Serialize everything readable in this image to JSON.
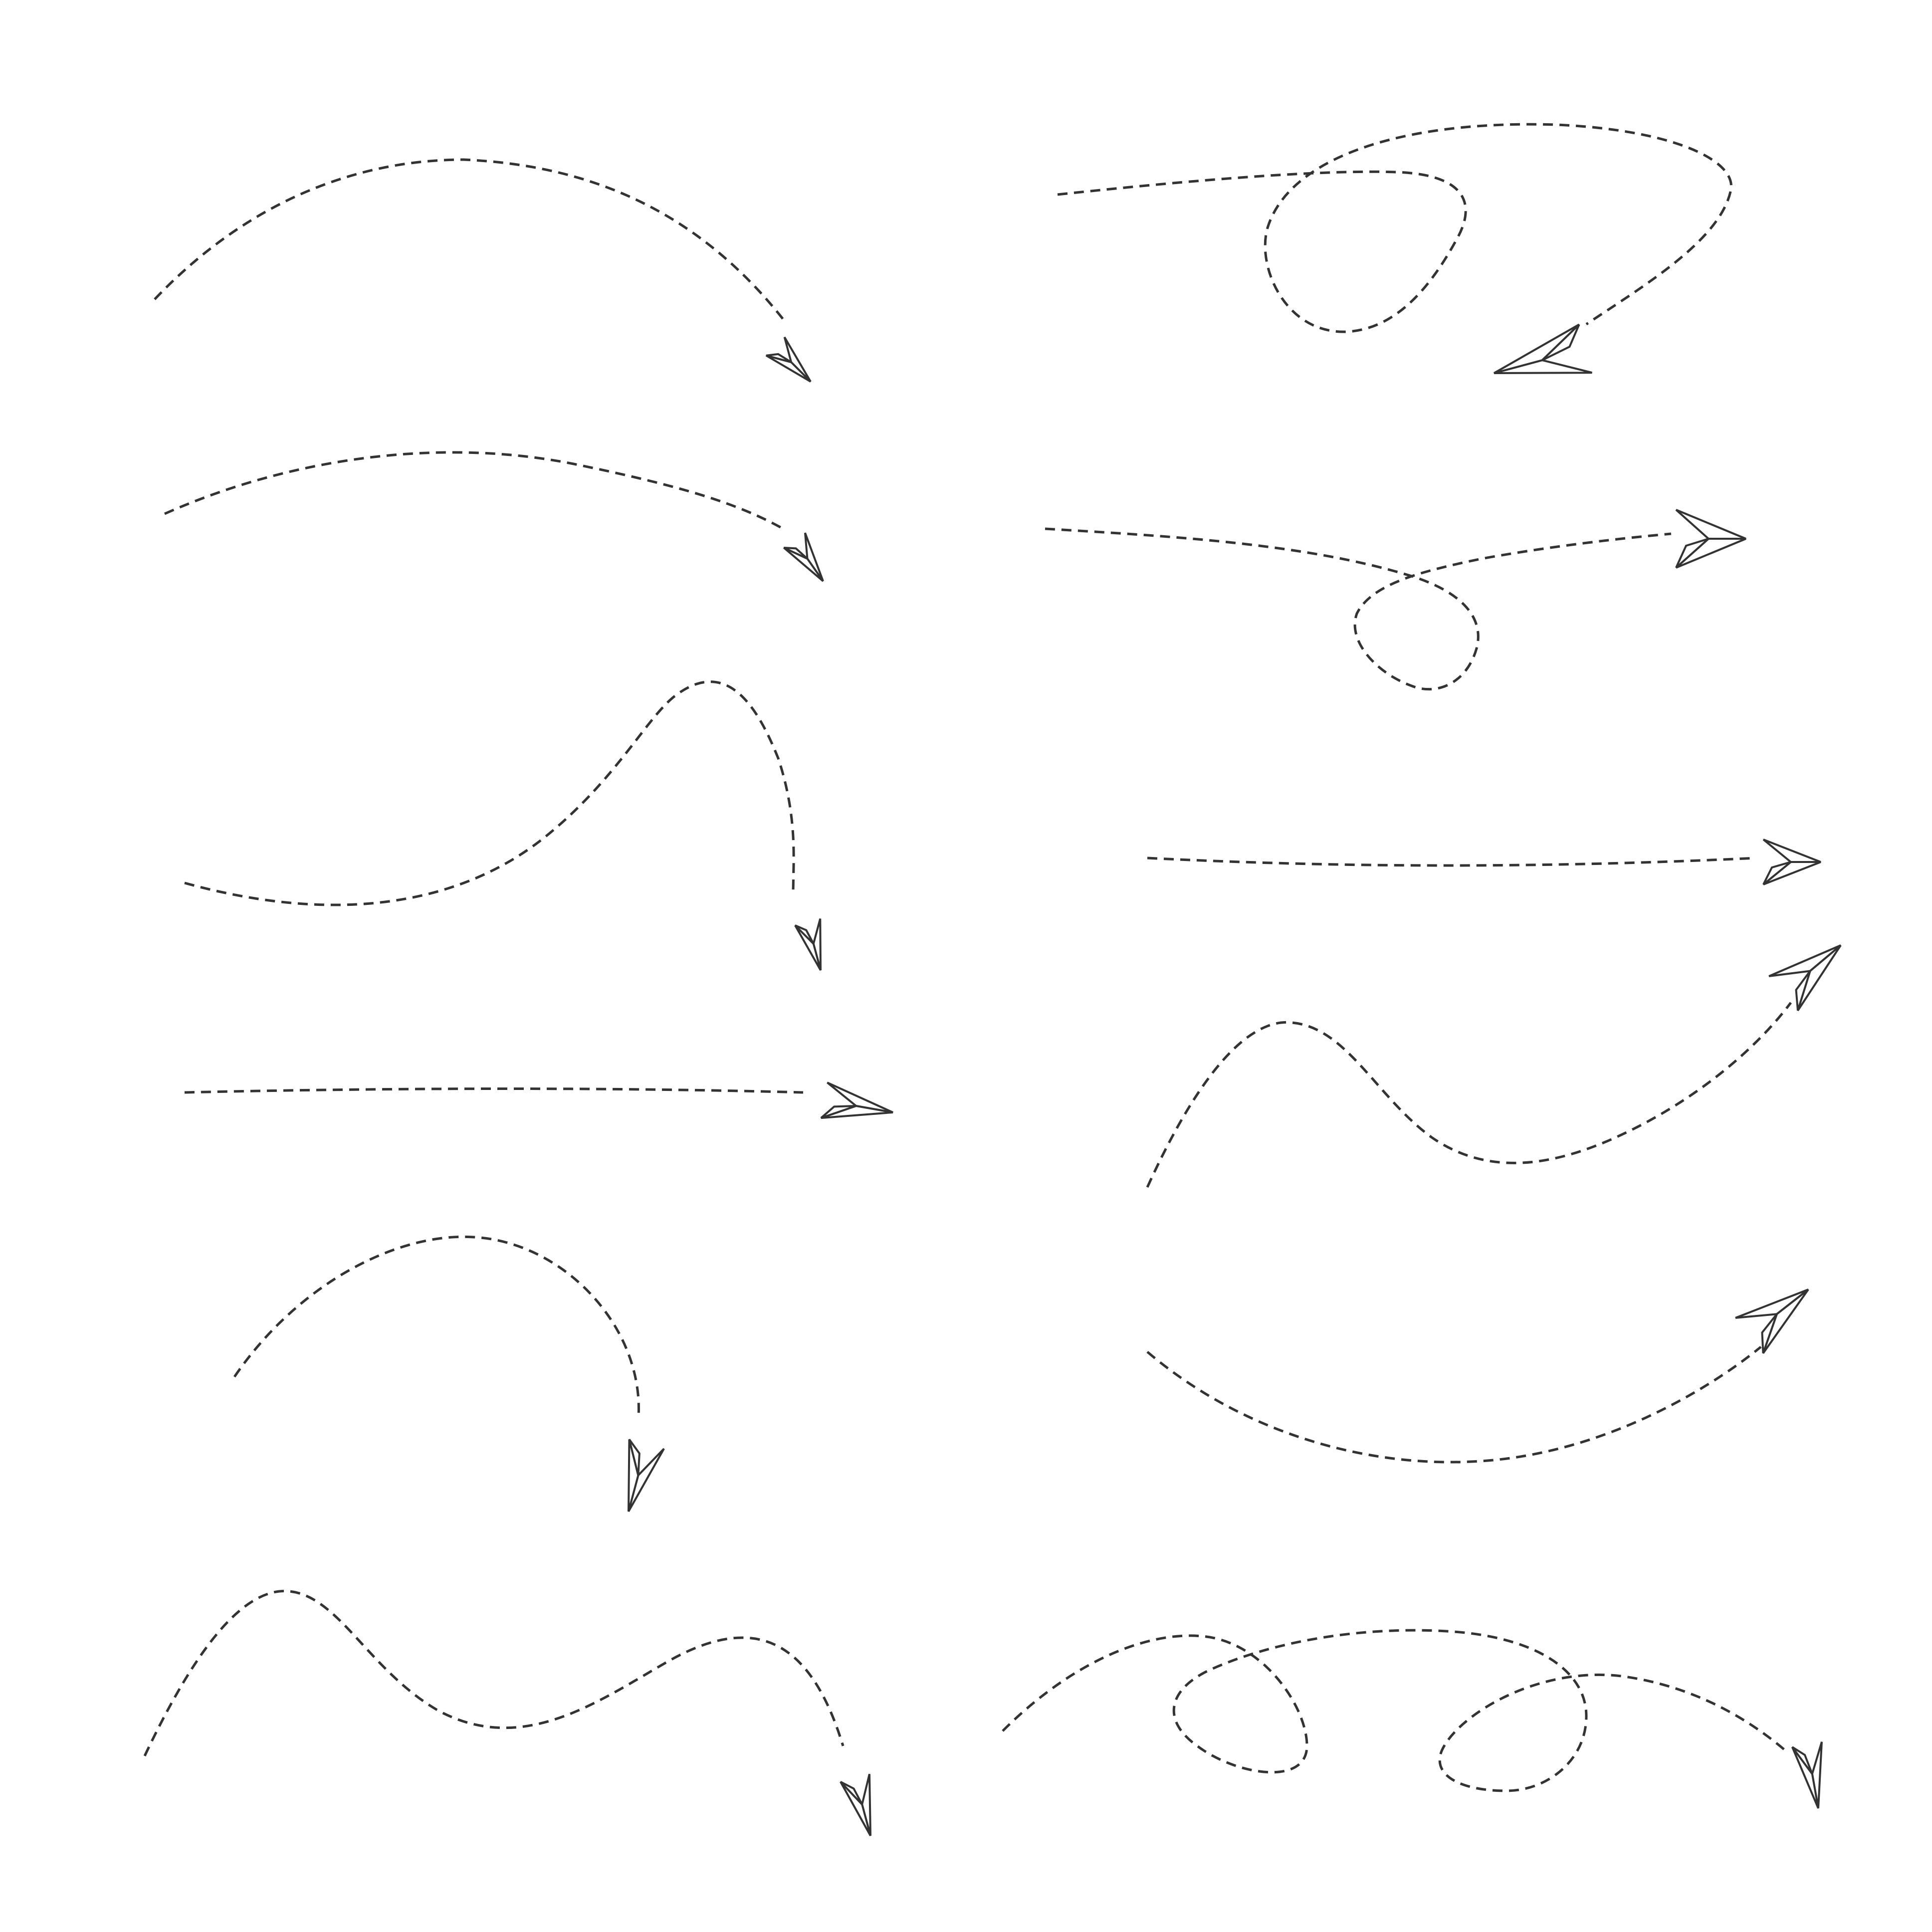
{
  "illustration": {
    "background_color": "#ffffff",
    "line_color": "#333333",
    "trail_style": "dashed",
    "icon": "paper-plane-icon",
    "paths": [
      {
        "id": "left-1",
        "shape": "arc"
      },
      {
        "id": "left-2",
        "shape": "shallow-arc"
      },
      {
        "id": "left-3",
        "shape": "hill-then-drop"
      },
      {
        "id": "left-4",
        "shape": "straight"
      },
      {
        "id": "left-5",
        "shape": "hook"
      },
      {
        "id": "left-6",
        "shape": "wave"
      },
      {
        "id": "right-1",
        "shape": "loop-and-return"
      },
      {
        "id": "right-2",
        "shape": "loop"
      },
      {
        "id": "right-3",
        "shape": "straight"
      },
      {
        "id": "right-4",
        "shape": "wave-up"
      },
      {
        "id": "right-5",
        "shape": "swoop-up"
      },
      {
        "id": "right-6",
        "shape": "double-loop"
      }
    ]
  }
}
